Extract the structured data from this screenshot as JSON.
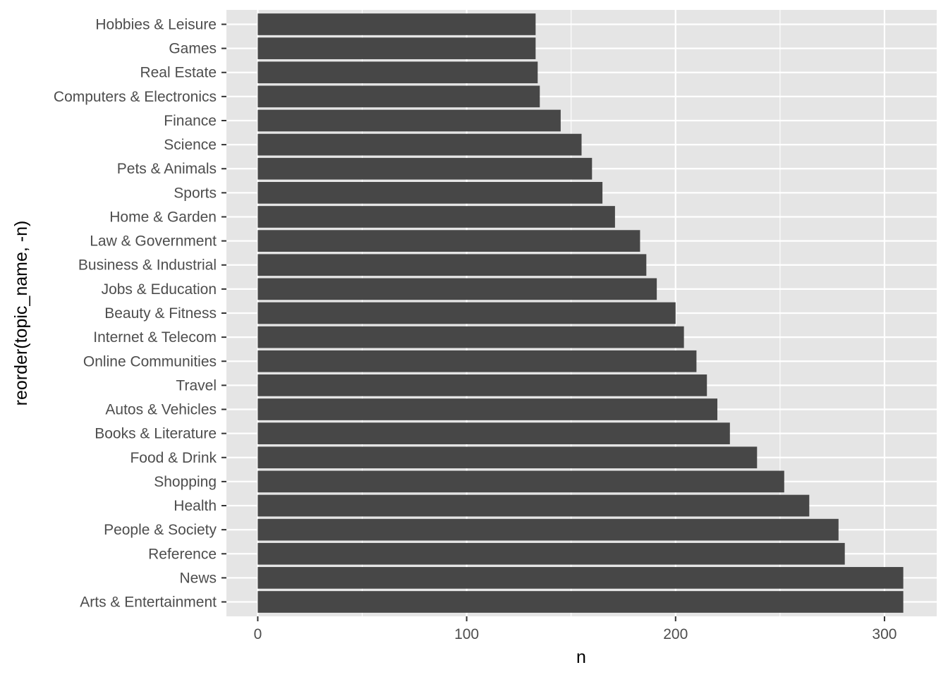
{
  "chart_data": {
    "type": "bar",
    "orientation": "horizontal",
    "xlabel": "n",
    "ylabel": "reorder(topic_name, -n)",
    "xlim": [
      -15,
      325
    ],
    "x_ticks": [
      0,
      100,
      200,
      300
    ],
    "grid": true,
    "colors": {
      "bar": "#474747",
      "panel": "#e5e5e5",
      "grid": "#ffffff"
    },
    "categories": [
      "Hobbies & Leisure",
      "Games",
      "Real Estate",
      "Computers & Electronics",
      "Finance",
      "Science",
      "Pets & Animals",
      "Sports",
      "Home & Garden",
      "Law & Government",
      "Business & Industrial",
      "Jobs & Education",
      "Beauty & Fitness",
      "Internet & Telecom",
      "Online Communities",
      "Travel",
      "Autos & Vehicles",
      "Books & Literature",
      "Food & Drink",
      "Shopping",
      "Health",
      "People & Society",
      "Reference",
      "News",
      "Arts & Entertainment"
    ],
    "values": [
      133,
      133,
      134,
      135,
      145,
      155,
      160,
      165,
      171,
      183,
      186,
      191,
      200,
      204,
      210,
      215,
      220,
      226,
      239,
      252,
      264,
      278,
      281,
      309,
      309
    ]
  }
}
